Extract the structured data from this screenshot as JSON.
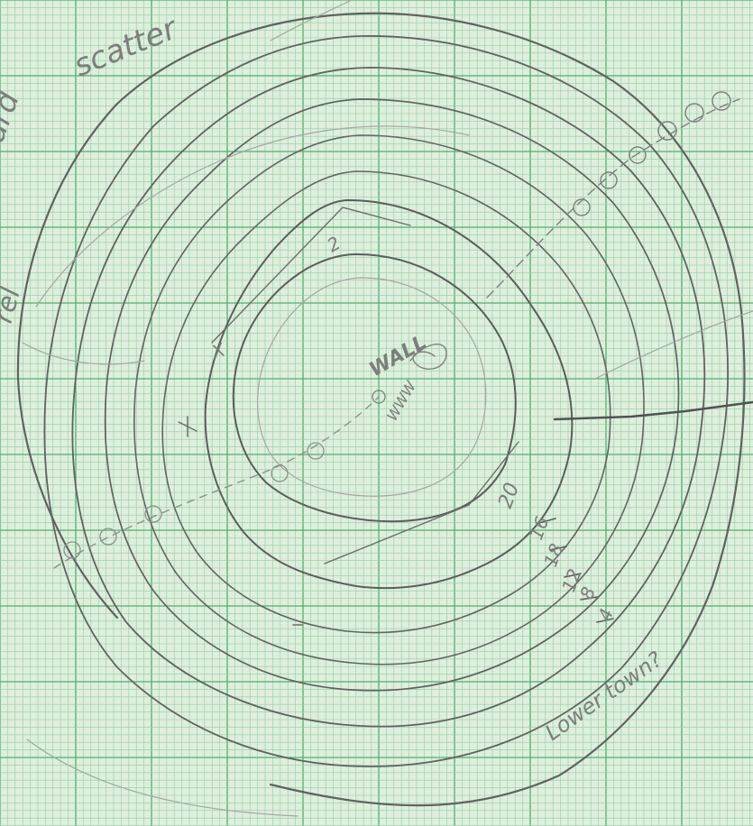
{
  "paper": {
    "background": "#dfeedd",
    "grid_minor_color": "#8fcf9f",
    "grid_major_color": "#4fb070",
    "pencil_color": "#5f635f",
    "pencil_light_color": "#a3a8a3"
  },
  "labels": {
    "scatter": "scatter",
    "scatter_left": "ard",
    "edge_left": "rel",
    "wall": "WALL",
    "spot_heights": {
      "top": "2",
      "left": "X",
      "inner_right": "20",
      "r16": "16",
      "r18": "18",
      "r12": "12",
      "r8": "8",
      "r4": "4"
    },
    "lower_town": "Lower town?",
    "vertical_scribble": "WWW"
  }
}
